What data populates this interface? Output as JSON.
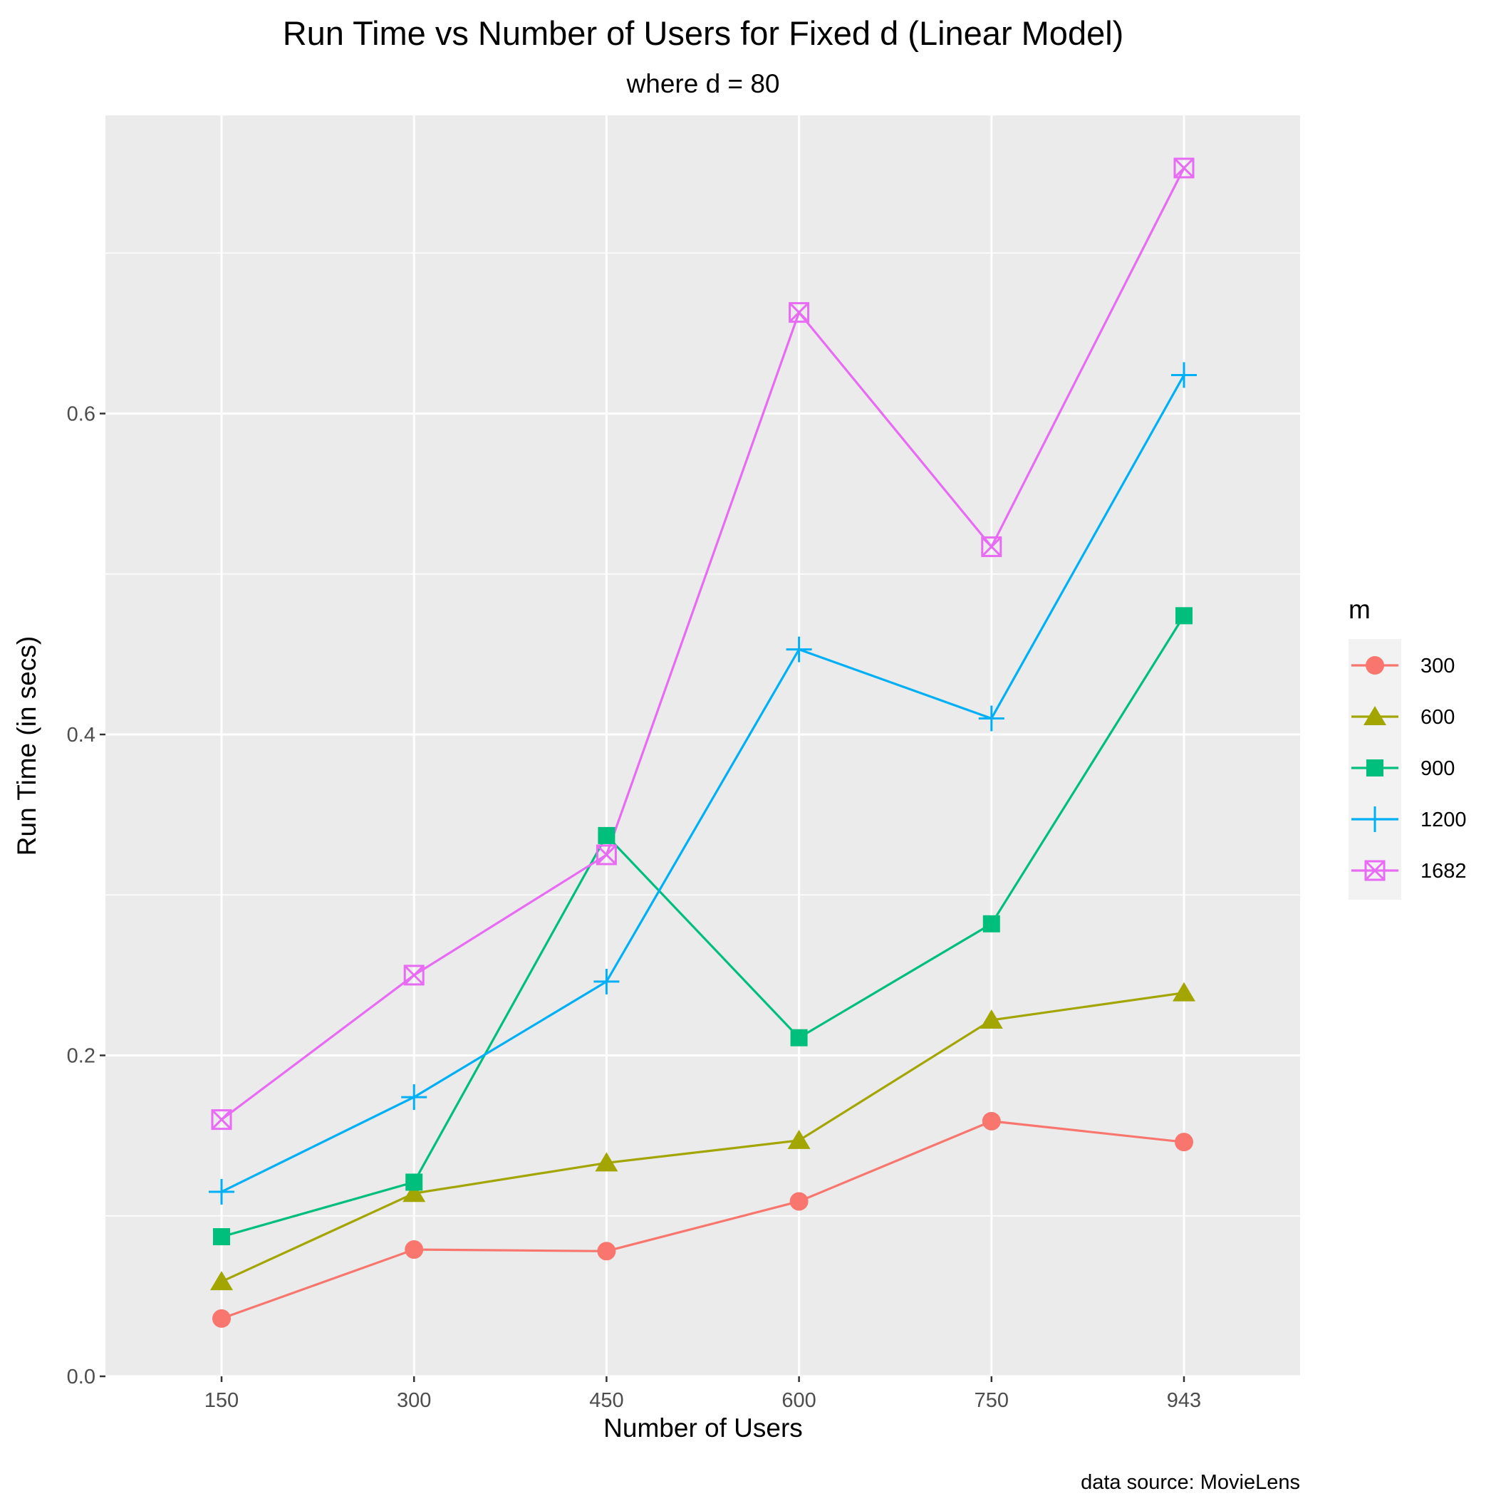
{
  "chart_data": {
    "type": "line",
    "title": "Run Time vs Number of Users for Fixed d (Linear Model)",
    "subtitle": "where d = 80",
    "xlabel": "Number of Users",
    "ylabel": "Run Time (in secs)",
    "caption": "data source: MovieLens",
    "categories": [
      "150",
      "300",
      "450",
      "600",
      "750",
      "943"
    ],
    "yticks": [
      "0.0",
      "0.2",
      "0.4",
      "0.6"
    ],
    "ylim": [
      0.0,
      0.78
    ],
    "grid": true,
    "legend": {
      "title": "m",
      "placement": "right"
    },
    "series": [
      {
        "name": "300",
        "color": "#F8766D",
        "marker": "circle",
        "values": [
          0.036,
          0.079,
          0.078,
          0.109,
          0.159,
          0.146
        ]
      },
      {
        "name": "600",
        "color": "#A3A500",
        "marker": "triangle",
        "values": [
          0.059,
          0.114,
          0.133,
          0.147,
          0.222,
          0.239
        ]
      },
      {
        "name": "900",
        "color": "#00BF7D",
        "marker": "square",
        "values": [
          0.087,
          0.121,
          0.337,
          0.211,
          0.282,
          0.474
        ]
      },
      {
        "name": "1200",
        "color": "#00B0F6",
        "marker": "plus",
        "values": [
          0.115,
          0.174,
          0.246,
          0.453,
          0.41,
          0.624
        ]
      },
      {
        "name": "1682",
        "color": "#E76BF3",
        "marker": "square-cross",
        "values": [
          0.16,
          0.25,
          0.325,
          0.663,
          0.517,
          0.753
        ]
      }
    ]
  }
}
